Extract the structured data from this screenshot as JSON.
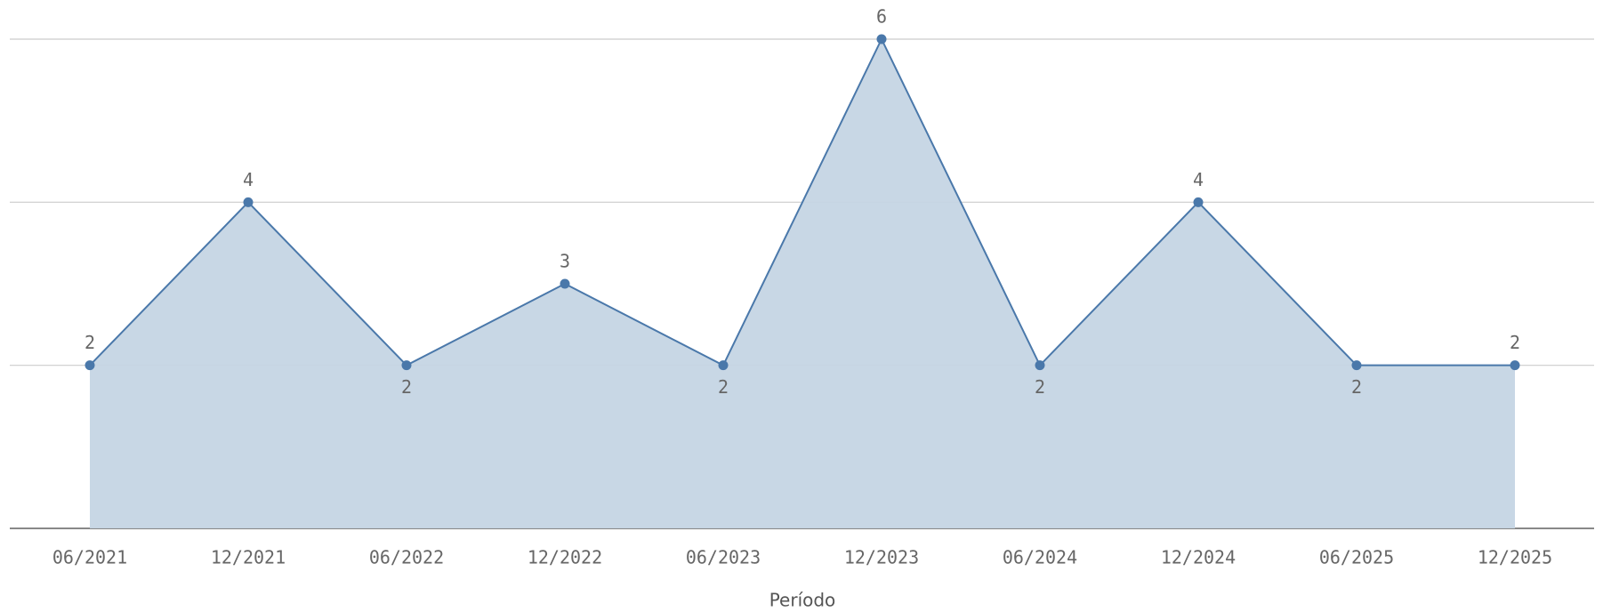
{
  "chart_data": {
    "type": "area",
    "x_label": "Período",
    "categories": [
      "06/2021",
      "12/2021",
      "06/2022",
      "12/2022",
      "06/2023",
      "12/2023",
      "06/2024",
      "12/2024",
      "06/2025",
      "12/2025"
    ],
    "values": [
      2,
      4,
      2,
      3,
      2,
      6,
      2,
      4,
      2,
      2
    ],
    "color": "#4a78aa",
    "fill_color": "#c5d5e4",
    "ylim": [
      0,
      6
    ],
    "yticks": [
      0,
      2,
      4,
      6
    ],
    "grid": true
  }
}
